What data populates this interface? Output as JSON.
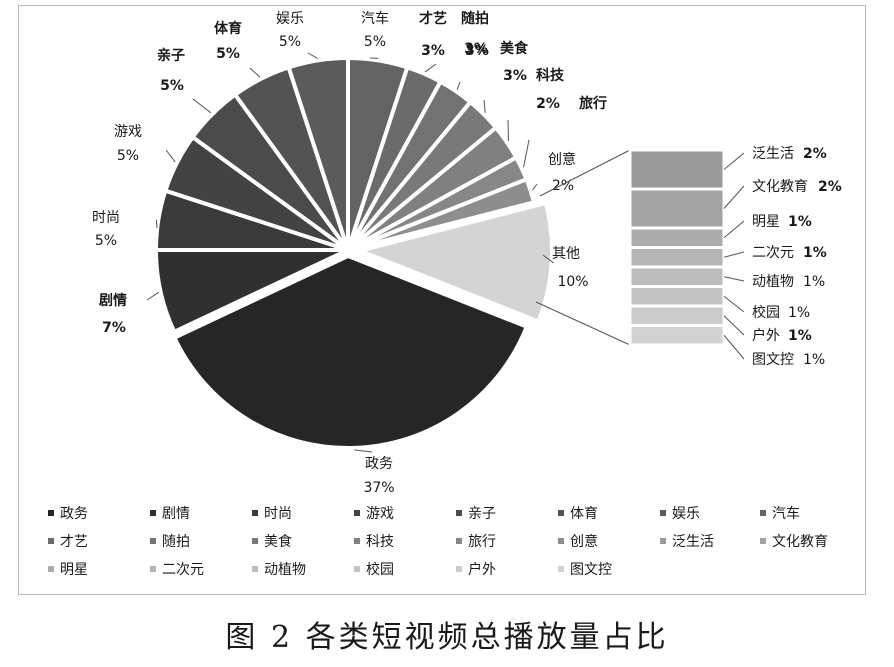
{
  "caption": "图 2   各类短视频总播放量占比",
  "chart_data": {
    "type": "pie",
    "title": "",
    "slices": [
      {
        "name": "政务",
        "value": 37,
        "label": "37%",
        "color": "#262626"
      },
      {
        "name": "剧情",
        "value": 7,
        "label": "7%",
        "color": "#303030"
      },
      {
        "name": "时尚",
        "value": 5,
        "label": "5%",
        "color": "#3a3a3a"
      },
      {
        "name": "游戏",
        "value": 5,
        "label": "5%",
        "color": "#434343"
      },
      {
        "name": "亲子",
        "value": 5,
        "label": "5%",
        "color": "#4b4b4b"
      },
      {
        "name": "体育",
        "value": 5,
        "label": "5%",
        "color": "#535353"
      },
      {
        "name": "娱乐",
        "value": 5,
        "label": "5%",
        "color": "#5b5b5b"
      },
      {
        "name": "汽车",
        "value": 5,
        "label": "5%",
        "color": "#636363"
      },
      {
        "name": "才艺",
        "value": 3,
        "label": "3%",
        "color": "#6b6b6b"
      },
      {
        "name": "随拍",
        "value": 3,
        "label": "3%",
        "color": "#727272"
      },
      {
        "name": "美食",
        "value": 3,
        "label": "3%",
        "color": "#797979"
      },
      {
        "name": "科技",
        "value": 3,
        "label": "3%",
        "color": "#808080"
      },
      {
        "name": "旅行",
        "value": 2,
        "label": "2%",
        "color": "#878787"
      },
      {
        "name": "创意",
        "value": 2,
        "label": "2%",
        "color": "#8e8e8e"
      },
      {
        "name": "其他",
        "value": 10,
        "label": "10%",
        "color": "#d4d4d4"
      }
    ],
    "other_breakdown": [
      {
        "name": "泛生活",
        "value": 2,
        "label": "2%",
        "color": "#9a9a9a"
      },
      {
        "name": "文化教育",
        "value": 2,
        "label": "2%",
        "color": "#a3a3a3"
      },
      {
        "name": "明星",
        "value": 1,
        "label": "1%",
        "color": "#acacac"
      },
      {
        "name": "二次元",
        "value": 1,
        "label": "1%",
        "color": "#b4b4b4"
      },
      {
        "name": "动植物",
        "value": 1,
        "label": "1%",
        "color": "#bcbcbc"
      },
      {
        "name": "校园",
        "value": 1,
        "label": "1%",
        "color": "#c4c4c4"
      },
      {
        "name": "户外",
        "value": 1,
        "label": "1%",
        "color": "#cbcbcb"
      },
      {
        "name": "图文控",
        "value": 1,
        "label": "1%",
        "color": "#d2d2d2"
      }
    ],
    "legend": {
      "placement": "bottom",
      "entries": [
        "政务",
        "剧情",
        "时尚",
        "游戏",
        "亲子",
        "体育",
        "娱乐",
        "汽车",
        "才艺",
        "随拍",
        "美食",
        "科技",
        "旅行",
        "创意",
        "泛生活",
        "文化教育",
        "明星",
        "二次元",
        "动植物",
        "校园",
        "户外",
        "图文控"
      ]
    }
  }
}
